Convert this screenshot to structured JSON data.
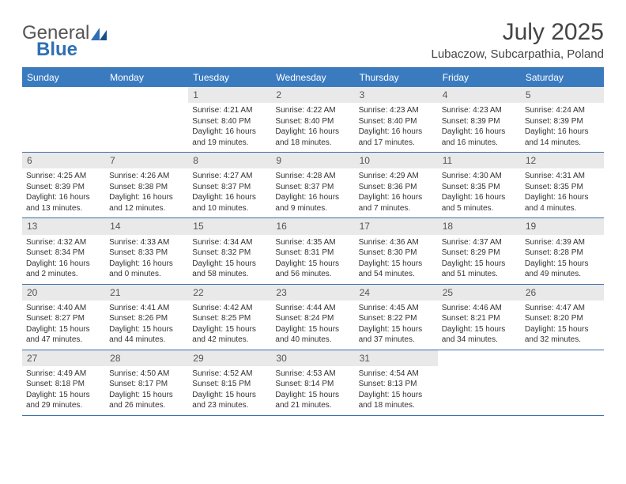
{
  "logo": {
    "text1": "General",
    "text2": "Blue"
  },
  "title": "July 2025",
  "location": "Lubaczow, Subcarpathia, Poland",
  "colors": {
    "header_bg": "#3a7bc0",
    "header_text": "#ffffff",
    "border": "#3a6fa8",
    "daynum_bg": "#e9e9e9",
    "body_text": "#333333",
    "logo_gray": "#555555",
    "logo_blue": "#2f6fb4"
  },
  "typography": {
    "title_fontsize": 30,
    "location_fontsize": 15,
    "weekday_fontsize": 12,
    "daynum_fontsize": 12,
    "body_fontsize": 10
  },
  "weekdays": [
    "Sunday",
    "Monday",
    "Tuesday",
    "Wednesday",
    "Thursday",
    "Friday",
    "Saturday"
  ],
  "weeks": [
    [
      {
        "n": "",
        "sr": "",
        "ss": "",
        "d1": "",
        "d2": ""
      },
      {
        "n": "",
        "sr": "",
        "ss": "",
        "d1": "",
        "d2": ""
      },
      {
        "n": "1",
        "sr": "Sunrise: 4:21 AM",
        "ss": "Sunset: 8:40 PM",
        "d1": "Daylight: 16 hours",
        "d2": "and 19 minutes."
      },
      {
        "n": "2",
        "sr": "Sunrise: 4:22 AM",
        "ss": "Sunset: 8:40 PM",
        "d1": "Daylight: 16 hours",
        "d2": "and 18 minutes."
      },
      {
        "n": "3",
        "sr": "Sunrise: 4:23 AM",
        "ss": "Sunset: 8:40 PM",
        "d1": "Daylight: 16 hours",
        "d2": "and 17 minutes."
      },
      {
        "n": "4",
        "sr": "Sunrise: 4:23 AM",
        "ss": "Sunset: 8:39 PM",
        "d1": "Daylight: 16 hours",
        "d2": "and 16 minutes."
      },
      {
        "n": "5",
        "sr": "Sunrise: 4:24 AM",
        "ss": "Sunset: 8:39 PM",
        "d1": "Daylight: 16 hours",
        "d2": "and 14 minutes."
      }
    ],
    [
      {
        "n": "6",
        "sr": "Sunrise: 4:25 AM",
        "ss": "Sunset: 8:39 PM",
        "d1": "Daylight: 16 hours",
        "d2": "and 13 minutes."
      },
      {
        "n": "7",
        "sr": "Sunrise: 4:26 AM",
        "ss": "Sunset: 8:38 PM",
        "d1": "Daylight: 16 hours",
        "d2": "and 12 minutes."
      },
      {
        "n": "8",
        "sr": "Sunrise: 4:27 AM",
        "ss": "Sunset: 8:37 PM",
        "d1": "Daylight: 16 hours",
        "d2": "and 10 minutes."
      },
      {
        "n": "9",
        "sr": "Sunrise: 4:28 AM",
        "ss": "Sunset: 8:37 PM",
        "d1": "Daylight: 16 hours",
        "d2": "and 9 minutes."
      },
      {
        "n": "10",
        "sr": "Sunrise: 4:29 AM",
        "ss": "Sunset: 8:36 PM",
        "d1": "Daylight: 16 hours",
        "d2": "and 7 minutes."
      },
      {
        "n": "11",
        "sr": "Sunrise: 4:30 AM",
        "ss": "Sunset: 8:35 PM",
        "d1": "Daylight: 16 hours",
        "d2": "and 5 minutes."
      },
      {
        "n": "12",
        "sr": "Sunrise: 4:31 AM",
        "ss": "Sunset: 8:35 PM",
        "d1": "Daylight: 16 hours",
        "d2": "and 4 minutes."
      }
    ],
    [
      {
        "n": "13",
        "sr": "Sunrise: 4:32 AM",
        "ss": "Sunset: 8:34 PM",
        "d1": "Daylight: 16 hours",
        "d2": "and 2 minutes."
      },
      {
        "n": "14",
        "sr": "Sunrise: 4:33 AM",
        "ss": "Sunset: 8:33 PM",
        "d1": "Daylight: 16 hours",
        "d2": "and 0 minutes."
      },
      {
        "n": "15",
        "sr": "Sunrise: 4:34 AM",
        "ss": "Sunset: 8:32 PM",
        "d1": "Daylight: 15 hours",
        "d2": "and 58 minutes."
      },
      {
        "n": "16",
        "sr": "Sunrise: 4:35 AM",
        "ss": "Sunset: 8:31 PM",
        "d1": "Daylight: 15 hours",
        "d2": "and 56 minutes."
      },
      {
        "n": "17",
        "sr": "Sunrise: 4:36 AM",
        "ss": "Sunset: 8:30 PM",
        "d1": "Daylight: 15 hours",
        "d2": "and 54 minutes."
      },
      {
        "n": "18",
        "sr": "Sunrise: 4:37 AM",
        "ss": "Sunset: 8:29 PM",
        "d1": "Daylight: 15 hours",
        "d2": "and 51 minutes."
      },
      {
        "n": "19",
        "sr": "Sunrise: 4:39 AM",
        "ss": "Sunset: 8:28 PM",
        "d1": "Daylight: 15 hours",
        "d2": "and 49 minutes."
      }
    ],
    [
      {
        "n": "20",
        "sr": "Sunrise: 4:40 AM",
        "ss": "Sunset: 8:27 PM",
        "d1": "Daylight: 15 hours",
        "d2": "and 47 minutes."
      },
      {
        "n": "21",
        "sr": "Sunrise: 4:41 AM",
        "ss": "Sunset: 8:26 PM",
        "d1": "Daylight: 15 hours",
        "d2": "and 44 minutes."
      },
      {
        "n": "22",
        "sr": "Sunrise: 4:42 AM",
        "ss": "Sunset: 8:25 PM",
        "d1": "Daylight: 15 hours",
        "d2": "and 42 minutes."
      },
      {
        "n": "23",
        "sr": "Sunrise: 4:44 AM",
        "ss": "Sunset: 8:24 PM",
        "d1": "Daylight: 15 hours",
        "d2": "and 40 minutes."
      },
      {
        "n": "24",
        "sr": "Sunrise: 4:45 AM",
        "ss": "Sunset: 8:22 PM",
        "d1": "Daylight: 15 hours",
        "d2": "and 37 minutes."
      },
      {
        "n": "25",
        "sr": "Sunrise: 4:46 AM",
        "ss": "Sunset: 8:21 PM",
        "d1": "Daylight: 15 hours",
        "d2": "and 34 minutes."
      },
      {
        "n": "26",
        "sr": "Sunrise: 4:47 AM",
        "ss": "Sunset: 8:20 PM",
        "d1": "Daylight: 15 hours",
        "d2": "and 32 minutes."
      }
    ],
    [
      {
        "n": "27",
        "sr": "Sunrise: 4:49 AM",
        "ss": "Sunset: 8:18 PM",
        "d1": "Daylight: 15 hours",
        "d2": "and 29 minutes."
      },
      {
        "n": "28",
        "sr": "Sunrise: 4:50 AM",
        "ss": "Sunset: 8:17 PM",
        "d1": "Daylight: 15 hours",
        "d2": "and 26 minutes."
      },
      {
        "n": "29",
        "sr": "Sunrise: 4:52 AM",
        "ss": "Sunset: 8:15 PM",
        "d1": "Daylight: 15 hours",
        "d2": "and 23 minutes."
      },
      {
        "n": "30",
        "sr": "Sunrise: 4:53 AM",
        "ss": "Sunset: 8:14 PM",
        "d1": "Daylight: 15 hours",
        "d2": "and 21 minutes."
      },
      {
        "n": "31",
        "sr": "Sunrise: 4:54 AM",
        "ss": "Sunset: 8:13 PM",
        "d1": "Daylight: 15 hours",
        "d2": "and 18 minutes."
      },
      {
        "n": "",
        "sr": "",
        "ss": "",
        "d1": "",
        "d2": ""
      },
      {
        "n": "",
        "sr": "",
        "ss": "",
        "d1": "",
        "d2": ""
      }
    ]
  ]
}
